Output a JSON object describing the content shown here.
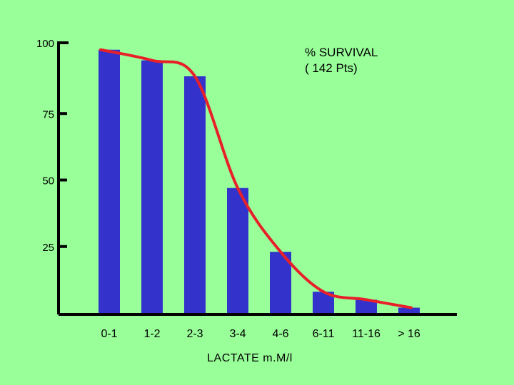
{
  "chart_data": {
    "type": "bar",
    "title": "",
    "annotation_lines": [
      "% SURVIVAL",
      "( 142 Pts)"
    ],
    "xlabel": "LACTATE  m.M/l",
    "ylabel": "",
    "categories": [
      "0-1",
      "1-2",
      "2-3",
      "3-4",
      "4-6",
      "6-11",
      "11-16",
      "> 16"
    ],
    "values": [
      99,
      95,
      89,
      47,
      23,
      8,
      5,
      2
    ],
    "yticks": [
      25,
      50,
      75,
      100
    ],
    "ylim": [
      0,
      101
    ],
    "trend_line": {
      "name": "survival curve",
      "values": [
        99,
        95,
        89,
        47,
        23,
        8,
        5,
        2
      ]
    },
    "grid": false,
    "legend": "none"
  },
  "colors": {
    "background": "#99ff99",
    "bars": "#3333cc",
    "curve": "#e8202a",
    "axis": "#000000"
  }
}
